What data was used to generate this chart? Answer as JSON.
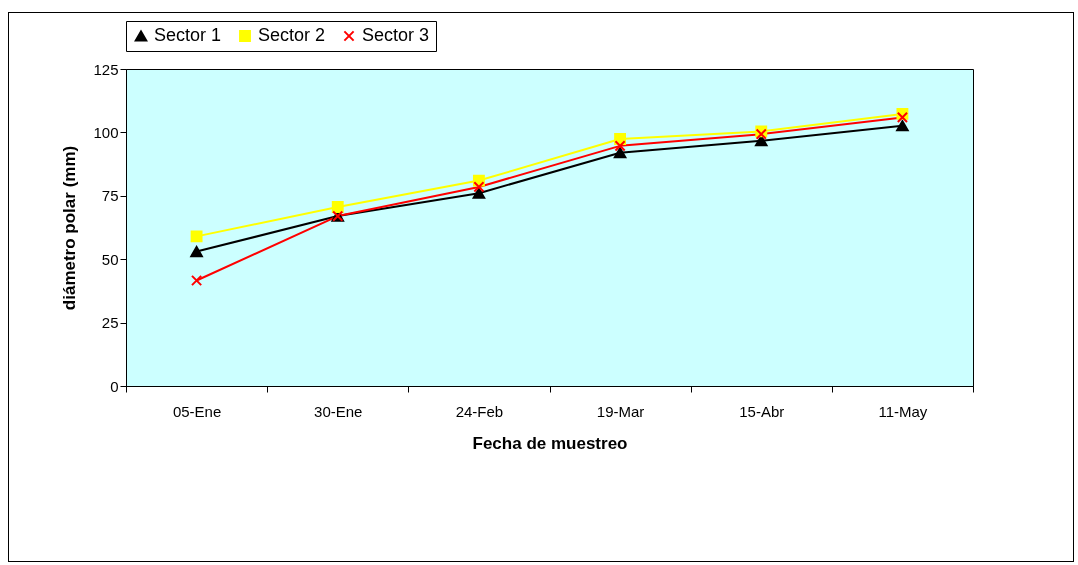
{
  "chart_data": {
    "type": "line",
    "xlabel": "Fecha de muestreo",
    "ylabel": "diámetro polar (mm)",
    "categories": [
      "05-Ene",
      "30-Ene",
      "24-Feb",
      "19-Mar",
      "15-Abr",
      "11-May"
    ],
    "series": [
      {
        "name": "Sector 1",
        "color": "#000000",
        "marker": "triangle",
        "values": [
          53,
          67,
          76,
          92,
          96.7,
          102.6
        ]
      },
      {
        "name": "Sector 2",
        "color": "#ffff00",
        "marker": "square",
        "values": [
          59,
          70.6,
          81,
          97.4,
          100.4,
          107.3
        ]
      },
      {
        "name": "Sector 3",
        "color": "#ff0000",
        "marker": "cross",
        "values": [
          41.6,
          67,
          78.5,
          94.7,
          99.3,
          105.9
        ]
      }
    ],
    "ylim": [
      0,
      125
    ],
    "yticks": [
      0,
      25,
      50,
      75,
      100,
      125
    ],
    "legend": "top",
    "line_style": "solid"
  }
}
